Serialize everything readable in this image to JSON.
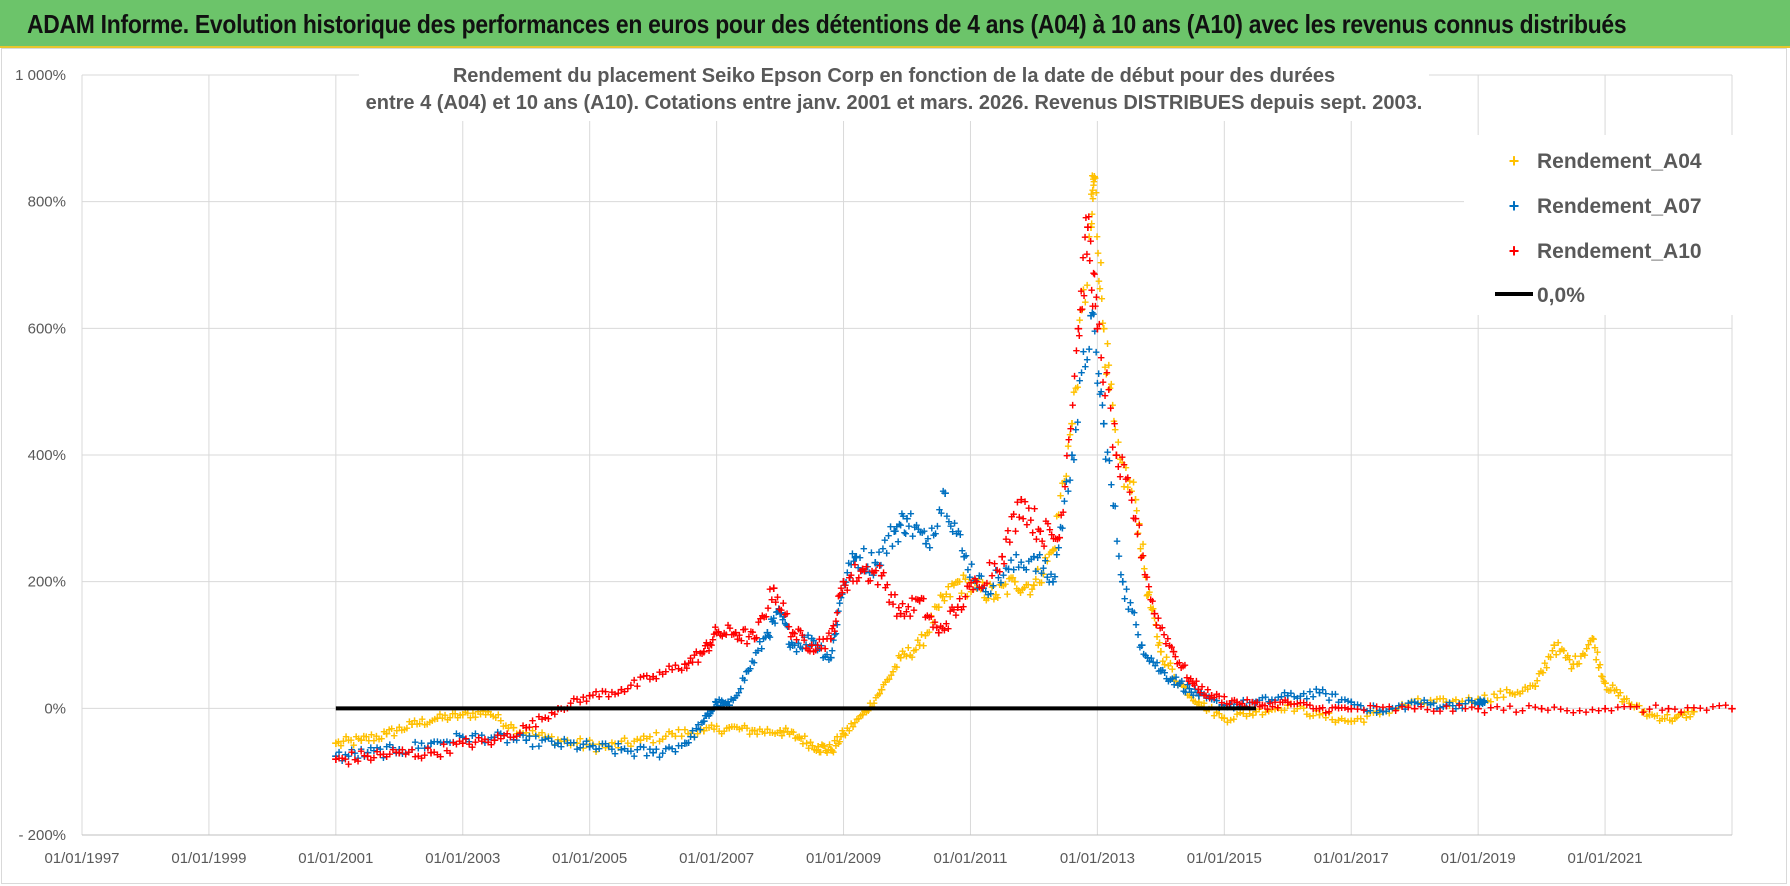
{
  "banner": {
    "title": "ADAM Informe. Evolution historique des performances en euros pour des détentions de 4 ans (A04) à 10 ans (A10) avec les revenus connus distribués"
  },
  "colors": {
    "banner_bg": "#6cc46a",
    "A04": "#ffc000",
    "A07": "#0070c0",
    "A10": "#ff0000",
    "zero_line": "#000000",
    "grid": "#d9d9d9",
    "text": "#595959"
  },
  "chart_data": {
    "type": "scatter",
    "title_line1": "Rendement du placement Seiko Epson Corp en fonction de la date de début pour des durées",
    "title_line2": "entre 4 (A04) et 10 ans (A10). Cotations entre janv. 2001 et mars. 2026. Revenus DISTRIBUES depuis sept. 2003.",
    "xlabel": "",
    "ylabel": "",
    "xlim": [
      1997.0,
      2023.0
    ],
    "ylim": [
      -200,
      1000
    ],
    "x_ticks": [
      1997,
      1999,
      2001,
      2003,
      2005,
      2007,
      2009,
      2011,
      2013,
      2015,
      2017,
      2019,
      2021
    ],
    "x_tick_labels": [
      "01/01/1997",
      "01/01/1999",
      "01/01/2001",
      "01/01/2003",
      "01/01/2005",
      "01/01/2007",
      "01/01/2009",
      "01/01/2011",
      "01/01/2013",
      "01/01/2015",
      "01/01/2017",
      "01/01/2019",
      "01/01/2021"
    ],
    "y_ticks": [
      -200,
      0,
      200,
      400,
      600,
      800,
      1000
    ],
    "y_tick_labels": [
      "- 200%",
      "0%",
      "200%",
      "400%",
      "600%",
      "800%",
      "1 000%"
    ],
    "grid": true,
    "legend_position": "top-right",
    "legend": [
      "Rendement_A04",
      "Rendement_A07",
      "Rendement_A10",
      "0,0%"
    ],
    "series": [
      {
        "name": "Rendement_A04",
        "marker": "+",
        "color": "#ffc000",
        "points": [
          [
            2001.0,
            -55
          ],
          [
            2001.4,
            -50
          ],
          [
            2001.8,
            -40
          ],
          [
            2002.2,
            -25
          ],
          [
            2002.6,
            -15
          ],
          [
            2003.0,
            -10
          ],
          [
            2003.4,
            -5
          ],
          [
            2003.8,
            -30
          ],
          [
            2004.3,
            -45
          ],
          [
            2004.8,
            -55
          ],
          [
            2005.3,
            -60
          ],
          [
            2005.8,
            -50
          ],
          [
            2006.3,
            -40
          ],
          [
            2006.8,
            -35
          ],
          [
            2007.2,
            -30
          ],
          [
            2007.6,
            -35
          ],
          [
            2008.0,
            -35
          ],
          [
            2008.3,
            -45
          ],
          [
            2008.6,
            -60
          ],
          [
            2008.8,
            -65
          ],
          [
            2009.0,
            -40
          ],
          [
            2009.3,
            -10
          ],
          [
            2009.6,
            30
          ],
          [
            2009.9,
            80
          ],
          [
            2010.2,
            100
          ],
          [
            2010.5,
            160
          ],
          [
            2010.8,
            200
          ],
          [
            2011.1,
            190
          ],
          [
            2011.4,
            180
          ],
          [
            2011.7,
            200
          ],
          [
            2012.0,
            195
          ],
          [
            2012.3,
            250
          ],
          [
            2012.6,
            450
          ],
          [
            2012.9,
            760
          ],
          [
            2012.95,
            840
          ],
          [
            2013.1,
            600
          ],
          [
            2013.3,
            400
          ],
          [
            2013.6,
            330
          ],
          [
            2013.8,
            180
          ],
          [
            2014.0,
            90
          ],
          [
            2014.3,
            40
          ],
          [
            2014.6,
            10
          ],
          [
            2015.0,
            -15
          ],
          [
            2015.5,
            -5
          ],
          [
            2016.0,
            5
          ],
          [
            2016.5,
            -10
          ],
          [
            2017.0,
            -20
          ],
          [
            2017.5,
            -5
          ],
          [
            2018.0,
            10
          ],
          [
            2018.5,
            10
          ],
          [
            2019.0,
            15
          ],
          [
            2019.5,
            25
          ],
          [
            2019.9,
            35
          ],
          [
            2020.2,
            100
          ],
          [
            2020.5,
            70
          ],
          [
            2020.8,
            110
          ],
          [
            2021.0,
            40
          ],
          [
            2021.3,
            15
          ],
          [
            2021.7,
            -10
          ],
          [
            2022.1,
            -15
          ],
          [
            2022.4,
            -5
          ]
        ]
      },
      {
        "name": "Rendement_A07",
        "marker": "+",
        "color": "#0070c0",
        "points": [
          [
            2001.0,
            -75
          ],
          [
            2001.5,
            -70
          ],
          [
            2002.0,
            -65
          ],
          [
            2002.5,
            -55
          ],
          [
            2003.0,
            -45
          ],
          [
            2003.5,
            -45
          ],
          [
            2004.0,
            -50
          ],
          [
            2004.5,
            -55
          ],
          [
            2005.0,
            -60
          ],
          [
            2005.5,
            -65
          ],
          [
            2006.0,
            -70
          ],
          [
            2006.5,
            -55
          ],
          [
            2006.8,
            -20
          ],
          [
            2007.0,
            10
          ],
          [
            2007.2,
            5
          ],
          [
            2007.5,
            60
          ],
          [
            2007.8,
            120
          ],
          [
            2008.0,
            150
          ],
          [
            2008.2,
            100
          ],
          [
            2008.5,
            110
          ],
          [
            2008.8,
            80
          ],
          [
            2009.0,
            200
          ],
          [
            2009.2,
            240
          ],
          [
            2009.5,
            230
          ],
          [
            2009.8,
            280
          ],
          [
            2010.0,
            300
          ],
          [
            2010.3,
            260
          ],
          [
            2010.6,
            340
          ],
          [
            2010.9,
            240
          ],
          [
            2011.2,
            190
          ],
          [
            2011.6,
            220
          ],
          [
            2012.0,
            240
          ],
          [
            2012.3,
            200
          ],
          [
            2012.6,
            400
          ],
          [
            2012.9,
            620
          ],
          [
            2013.1,
            450
          ],
          [
            2013.4,
            200
          ],
          [
            2013.7,
            100
          ],
          [
            2014.0,
            60
          ],
          [
            2014.3,
            40
          ],
          [
            2014.6,
            20
          ],
          [
            2015.0,
            5
          ],
          [
            2015.5,
            10
          ],
          [
            2016.0,
            20
          ],
          [
            2016.5,
            25
          ],
          [
            2017.0,
            10
          ],
          [
            2017.5,
            -5
          ],
          [
            2018.0,
            10
          ],
          [
            2018.5,
            5
          ],
          [
            2019.0,
            10
          ],
          [
            2019.1,
            10
          ]
        ]
      },
      {
        "name": "Rendement_A10",
        "marker": "+",
        "color": "#ff0000",
        "points": [
          [
            2001.0,
            -80
          ],
          [
            2001.5,
            -75
          ],
          [
            2002.0,
            -70
          ],
          [
            2002.5,
            -70
          ],
          [
            2003.0,
            -55
          ],
          [
            2003.5,
            -50
          ],
          [
            2004.0,
            -30
          ],
          [
            2004.5,
            0
          ],
          [
            2005.0,
            20
          ],
          [
            2005.5,
            30
          ],
          [
            2006.0,
            50
          ],
          [
            2006.5,
            70
          ],
          [
            2006.8,
            90
          ],
          [
            2007.0,
            120
          ],
          [
            2007.3,
            120
          ],
          [
            2007.6,
            110
          ],
          [
            2007.9,
            190
          ],
          [
            2008.2,
            120
          ],
          [
            2008.5,
            100
          ],
          [
            2008.8,
            110
          ],
          [
            2009.0,
            200
          ],
          [
            2009.3,
            220
          ],
          [
            2009.6,
            210
          ],
          [
            2009.9,
            150
          ],
          [
            2010.2,
            170
          ],
          [
            2010.5,
            120
          ],
          [
            2010.8,
            160
          ],
          [
            2011.1,
            200
          ],
          [
            2011.5,
            240
          ],
          [
            2011.8,
            330
          ],
          [
            2012.1,
            280
          ],
          [
            2012.4,
            270
          ],
          [
            2012.7,
            600
          ],
          [
            2012.85,
            760
          ],
          [
            2013.0,
            600
          ],
          [
            2013.3,
            400
          ],
          [
            2013.6,
            300
          ],
          [
            2013.9,
            150
          ],
          [
            2014.2,
            90
          ],
          [
            2014.5,
            40
          ],
          [
            2014.8,
            20
          ],
          [
            2015.2,
            10
          ],
          [
            2015.6,
            5
          ],
          [
            2016.0,
            10
          ],
          [
            2016.5,
            0
          ],
          [
            2017.0,
            0
          ],
          [
            2018.0,
            0
          ],
          [
            2019.0,
            0
          ],
          [
            2020.0,
            0
          ],
          [
            2021.0,
            0
          ],
          [
            2022.0,
            0
          ],
          [
            2023.0,
            0
          ]
        ]
      },
      {
        "name": "0,0%",
        "type": "line",
        "color": "#000000",
        "points": [
          [
            2001.0,
            0
          ],
          [
            2015.5,
            0
          ]
        ]
      }
    ]
  }
}
